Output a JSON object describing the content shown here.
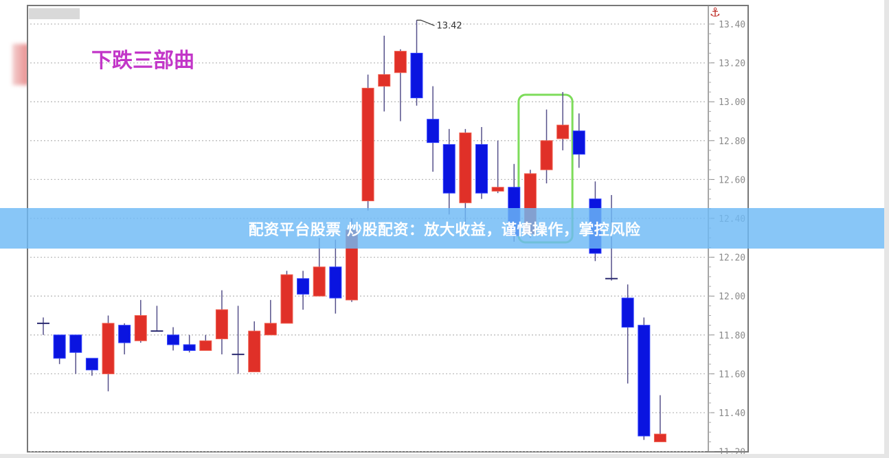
{
  "banner": {
    "text": "配资平台股票 炒股配资：放大收益，谨慎操作，掌控风险"
  },
  "chart_data": {
    "type": "candlestick",
    "title": "下跌三部曲",
    "ylim": [
      11.2,
      13.45
    ],
    "yticks": [
      "13.40",
      "13.20",
      "13.00",
      "12.80",
      "12.60",
      "12.40",
      "12.20",
      "12.00",
      "11.80",
      "11.60",
      "11.40",
      "11.20"
    ],
    "grid": true,
    "annotation": {
      "text": "13.42",
      "value": 13.42,
      "candle_index": 23
    },
    "highlight_box": {
      "from_index": 30,
      "to_index": 32,
      "color": "#7ddc5a"
    },
    "colors": {
      "up": "#e03028",
      "down": "#0a14e0",
      "title": "#c236c8",
      "axis_icon": "#c0302a"
    },
    "candles": [
      {
        "o": 11.86,
        "h": 11.89,
        "l": 11.8,
        "c": 11.86
      },
      {
        "o": 11.8,
        "h": 11.8,
        "l": 11.65,
        "c": 11.68
      },
      {
        "o": 11.8,
        "h": 11.8,
        "l": 11.6,
        "c": 11.71
      },
      {
        "o": 11.68,
        "h": 11.68,
        "l": 11.59,
        "c": 11.62
      },
      {
        "o": 11.6,
        "h": 11.9,
        "l": 11.51,
        "c": 11.86
      },
      {
        "o": 11.85,
        "h": 11.86,
        "l": 11.7,
        "c": 11.76
      },
      {
        "o": 11.77,
        "h": 11.98,
        "l": 11.76,
        "c": 11.9
      },
      {
        "o": 11.82,
        "h": 11.95,
        "l": 11.82,
        "c": 11.82
      },
      {
        "o": 11.8,
        "h": 11.84,
        "l": 11.72,
        "c": 11.75
      },
      {
        "o": 11.75,
        "h": 11.8,
        "l": 11.71,
        "c": 11.72
      },
      {
        "o": 11.72,
        "h": 11.8,
        "l": 11.72,
        "c": 11.77
      },
      {
        "o": 11.78,
        "h": 12.03,
        "l": 11.7,
        "c": 11.93
      },
      {
        "o": 11.7,
        "h": 11.95,
        "l": 11.6,
        "c": 11.7
      },
      {
        "o": 11.61,
        "h": 11.87,
        "l": 11.61,
        "c": 11.82
      },
      {
        "o": 11.8,
        "h": 11.98,
        "l": 11.8,
        "c": 11.86
      },
      {
        "o": 11.86,
        "h": 12.13,
        "l": 11.86,
        "c": 12.11
      },
      {
        "o": 12.09,
        "h": 12.13,
        "l": 11.93,
        "c": 12.01
      },
      {
        "o": 12.0,
        "h": 12.3,
        "l": 12.0,
        "c": 12.15
      },
      {
        "o": 12.15,
        "h": 12.29,
        "l": 11.91,
        "c": 11.99
      },
      {
        "o": 11.98,
        "h": 12.4,
        "l": 11.97,
        "c": 12.34
      },
      {
        "o": 12.49,
        "h": 13.14,
        "l": 12.44,
        "c": 13.07
      },
      {
        "o": 13.08,
        "h": 13.34,
        "l": 12.95,
        "c": 13.14
      },
      {
        "o": 13.15,
        "h": 13.27,
        "l": 12.9,
        "c": 13.26
      },
      {
        "o": 13.25,
        "h": 13.42,
        "l": 12.98,
        "c": 13.02
      },
      {
        "o": 12.91,
        "h": 13.08,
        "l": 12.64,
        "c": 12.79
      },
      {
        "o": 12.78,
        "h": 12.86,
        "l": 12.42,
        "c": 12.53
      },
      {
        "o": 12.48,
        "h": 12.86,
        "l": 12.36,
        "c": 12.84
      },
      {
        "o": 12.78,
        "h": 12.87,
        "l": 12.5,
        "c": 12.53
      },
      {
        "o": 12.54,
        "h": 12.8,
        "l": 12.53,
        "c": 12.56
      },
      {
        "o": 12.56,
        "h": 12.68,
        "l": 12.28,
        "c": 12.31
      },
      {
        "o": 12.32,
        "h": 12.65,
        "l": 12.3,
        "c": 12.63
      },
      {
        "o": 12.65,
        "h": 12.96,
        "l": 12.58,
        "c": 12.8
      },
      {
        "o": 12.81,
        "h": 13.05,
        "l": 12.75,
        "c": 12.88
      },
      {
        "o": 12.85,
        "h": 12.94,
        "l": 12.66,
        "c": 12.73
      },
      {
        "o": 12.5,
        "h": 12.59,
        "l": 12.18,
        "c": 12.22
      },
      {
        "o": 12.09,
        "h": 12.52,
        "l": 12.08,
        "c": 12.09
      },
      {
        "o": 11.99,
        "h": 12.06,
        "l": 11.55,
        "c": 11.84
      },
      {
        "o": 11.85,
        "h": 11.89,
        "l": 11.26,
        "c": 11.28
      },
      {
        "o": 11.25,
        "h": 11.49,
        "l": 11.25,
        "c": 11.29
      }
    ]
  }
}
